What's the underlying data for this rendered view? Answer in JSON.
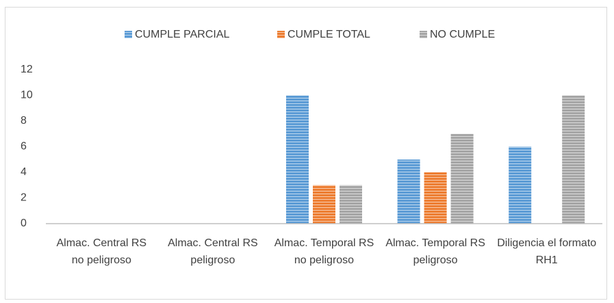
{
  "chart_data": {
    "type": "bar",
    "categories": [
      "Almac. Central RS no peligroso",
      "Almac. Central RS peligroso",
      "Almac. Temporal RS no peligroso",
      "Almac. Temporal RS peligroso",
      "Diligencia el formato RH1"
    ],
    "series": [
      {
        "name": "CUMPLE PARCIAL",
        "color": "#5b9bd5",
        "values": [
          0,
          0,
          10,
          5,
          6
        ]
      },
      {
        "name": "CUMPLE TOTAL",
        "color": "#ed7d31",
        "values": [
          0,
          0,
          3,
          4,
          0
        ]
      },
      {
        "name": "NO CUMPLE",
        "color": "#a5a5a5",
        "values": [
          0,
          0,
          3,
          7,
          10
        ]
      }
    ],
    "ylim": [
      0,
      12
    ],
    "yticks": [
      0,
      2,
      4,
      6,
      8,
      10,
      12
    ],
    "grid": false,
    "legend": "top"
  }
}
